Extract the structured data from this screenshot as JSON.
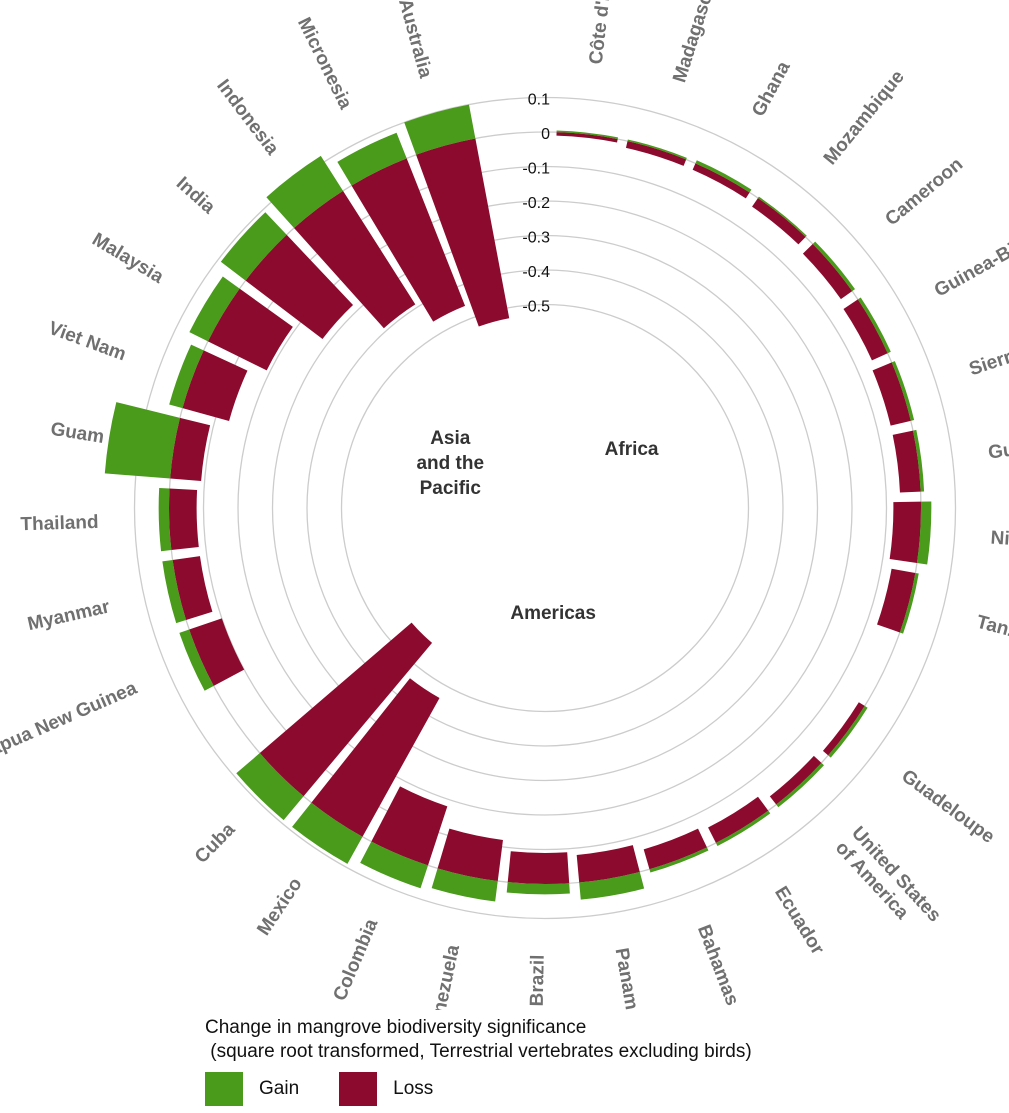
{
  "chart_data": {
    "type": "bar",
    "coordinate_system": "polar",
    "stacked": true,
    "legend": {
      "title_line1": "Change in mangrove biodiversity significance",
      "title_line2": " (square root transformed, Terrestrial vertebrates excluding birds)",
      "position": "bottom",
      "items": [
        {
          "key": "gain",
          "label": "Gain"
        },
        {
          "key": "loss",
          "label": "Loss"
        }
      ]
    },
    "radial_axis": {
      "range": [
        -0.6,
        0.25
      ],
      "ticks": [
        0.1,
        0,
        -0.1,
        -0.2,
        -0.3,
        -0.4,
        -0.5
      ],
      "tick_labels": [
        "0.1",
        "0",
        "-0.1",
        "-0.2",
        "-0.3",
        "-0.4",
        "-0.5"
      ],
      "grid": true
    },
    "colors": {
      "gain": "#4a9a1c",
      "loss": "#8b0a2d",
      "grid": "#cccccc",
      "country_label": "#707070",
      "region_label": "#333333"
    },
    "groups": [
      {
        "name": "Africa",
        "label_lines": [
          "Africa"
        ],
        "countries": [
          {
            "name": "Côte d'Ivoire",
            "gain": 0.005,
            "loss": -0.01
          },
          {
            "name": "Madagascar",
            "gain": 0.005,
            "loss": -0.02
          },
          {
            "name": "Ghana",
            "gain": 0.01,
            "loss": -0.02
          },
          {
            "name": "Mozambique",
            "gain": 0.005,
            "loss": -0.03
          },
          {
            "name": "Cameroon",
            "gain": 0.01,
            "loss": -0.04
          },
          {
            "name": "Guinea-Bissau",
            "gain": 0.01,
            "loss": -0.05
          },
          {
            "name": "Sierra Leone",
            "gain": 0.01,
            "loss": -0.06
          },
          {
            "name": "Guinea",
            "gain": 0.01,
            "loss": -0.06
          },
          {
            "name": "Nigeria",
            "gain": 0.03,
            "loss": -0.08
          },
          {
            "name": "Tanzania",
            "gain": 0.01,
            "loss": -0.07
          }
        ]
      },
      {
        "name": "Americas",
        "label_lines": [
          "Americas"
        ],
        "countries": [
          {
            "name": "Guadeloupe",
            "gain": 0.01,
            "loss": -0.02
          },
          {
            "name": "United States of America",
            "label_lines": [
              "United States",
              "of America"
            ],
            "gain": 0.01,
            "loss": -0.03
          },
          {
            "name": "Ecuador",
            "gain": 0.01,
            "loss": -0.05
          },
          {
            "name": "Bahamas",
            "gain": 0.01,
            "loss": -0.06
          },
          {
            "name": "Panama",
            "gain": 0.05,
            "loss": -0.08
          },
          {
            "name": "Brazil",
            "gain": 0.03,
            "loss": -0.09
          },
          {
            "name": "Venezuela",
            "gain": 0.06,
            "loss": -0.12
          },
          {
            "name": "Colombia",
            "gain": 0.07,
            "loss": -0.18
          },
          {
            "name": "Mexico",
            "gain": 0.09,
            "loss": -0.46
          },
          {
            "name": "Cuba",
            "gain": 0.09,
            "loss": -0.58
          }
        ]
      },
      {
        "name": "Asia and the Pacific",
        "label_lines": [
          "Asia",
          "and the",
          "Pacific"
        ],
        "countries": [
          {
            "name": "Papua New Guinea",
            "gain": 0.03,
            "loss": -0.1
          },
          {
            "name": "Myanmar",
            "gain": 0.03,
            "loss": -0.08
          },
          {
            "name": "Thailand",
            "gain": 0.03,
            "loss": -0.08
          },
          {
            "name": "Guam",
            "gain": 0.19,
            "loss": -0.09
          },
          {
            "name": "Viet Nam",
            "gain": 0.04,
            "loss": -0.14
          },
          {
            "name": "Malaysia",
            "gain": 0.06,
            "loss": -0.19
          },
          {
            "name": "India",
            "gain": 0.09,
            "loss": -0.28
          },
          {
            "name": "Indonesia",
            "gain": 0.12,
            "loss": -0.39
          },
          {
            "name": "Micronesia",
            "gain": 0.08,
            "loss": -0.46
          },
          {
            "name": "Australia",
            "gain": 0.1,
            "loss": -0.53
          }
        ]
      }
    ]
  }
}
